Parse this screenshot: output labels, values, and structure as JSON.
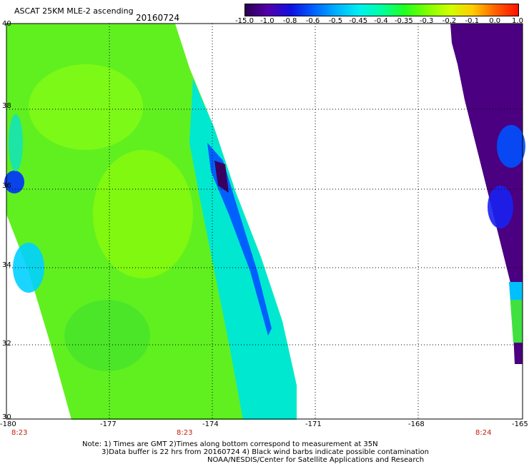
{
  "header": {
    "title": "ASCAT 25KM MLE-2 ascending",
    "date": "20160724"
  },
  "colorbar": {
    "labels": [
      "-15.0",
      "-1.0",
      "-0.8",
      "-0.6",
      "-0.5",
      "-0.45",
      "-0.4",
      "-0.35",
      "-0.3",
      "-0.2",
      "-0.1",
      "0.0",
      "1.0"
    ],
    "colors": [
      "#2a0050",
      "#5500aa",
      "#1010e0",
      "#0060ff",
      "#00b0ff",
      "#00f0f0",
      "#00ffa0",
      "#20ff20",
      "#80ff00",
      "#d0ff00",
      "#ffcc00",
      "#ff6000",
      "#ff1000"
    ]
  },
  "map": {
    "lon_range": [
      -180,
      -165
    ],
    "lat_range": [
      30,
      40
    ],
    "lon_ticks": [
      "-180",
      "-177",
      "-174",
      "-171",
      "-168",
      "-165"
    ],
    "lat_ticks": [
      "40",
      "38",
      "36",
      "34",
      "32",
      "30"
    ],
    "time_labels": [
      {
        "text": "8:23",
        "lon": -180
      },
      {
        "text": "8:23",
        "lon": -175
      },
      {
        "text": "8:24",
        "lon": -166
      }
    ]
  },
  "footer": {
    "line1": "Note: 1) Times are GMT 2)Times along bottom correspond to measurement at 35N",
    "line2": "3)Data buffer is 22 hrs from 20160724 4) Black wind barbs indicate possible contamination",
    "line3": "NOAA/NESDIS/Center for Satellite Applications and Research"
  }
}
